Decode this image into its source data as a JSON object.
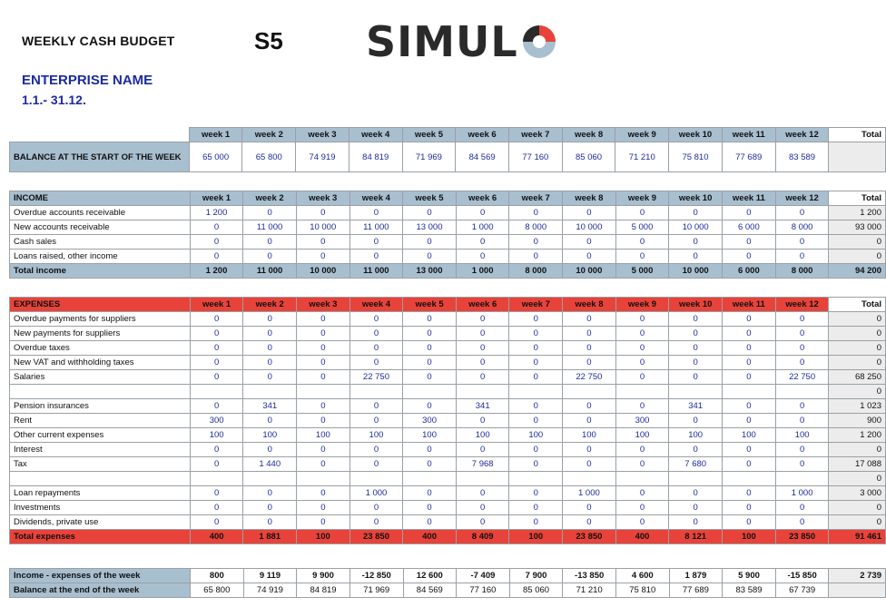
{
  "header": {
    "title": "WEEKLY CASH BUDGET",
    "code": "S5",
    "logo_text": "SIMUL",
    "enterprise": "ENTERPRISE NAME",
    "period": "1.1.- 31.12."
  },
  "columns": [
    "week 1",
    "week 2",
    "week 3",
    "week 4",
    "week 5",
    "week 6",
    "week 7",
    "week 8",
    "week 9",
    "week 10",
    "week 11",
    "week 12",
    "Total"
  ],
  "balance_start": {
    "label": "BALANCE AT THE START OF THE WEEK",
    "values": [
      "65 000",
      "65 800",
      "74 919",
      "84 819",
      "71 969",
      "84 569",
      "77 160",
      "85 060",
      "71 210",
      "75 810",
      "77 689",
      "83 589",
      ""
    ]
  },
  "income": {
    "title": "INCOME",
    "rows": [
      {
        "label": "Overdue accounts receivable",
        "values": [
          "1 200",
          "0",
          "0",
          "0",
          "0",
          "0",
          "0",
          "0",
          "0",
          "0",
          "0",
          "0",
          "1 200"
        ]
      },
      {
        "label": "New accounts receivable",
        "values": [
          "0",
          "11 000",
          "10 000",
          "11 000",
          "13 000",
          "1 000",
          "8 000",
          "10 000",
          "5 000",
          "10 000",
          "6 000",
          "8 000",
          "93 000"
        ]
      },
      {
        "label": "Cash sales",
        "values": [
          "0",
          "0",
          "0",
          "0",
          "0",
          "0",
          "0",
          "0",
          "0",
          "0",
          "0",
          "0",
          "0"
        ]
      },
      {
        "label": "Loans raised, other income",
        "values": [
          "0",
          "0",
          "0",
          "0",
          "0",
          "0",
          "0",
          "0",
          "0",
          "0",
          "0",
          "0",
          "0"
        ]
      }
    ],
    "total": {
      "label": "Total income",
      "values": [
        "1 200",
        "11 000",
        "10 000",
        "11 000",
        "13 000",
        "1 000",
        "8 000",
        "10 000",
        "5 000",
        "10 000",
        "6 000",
        "8 000",
        "94 200"
      ]
    }
  },
  "expenses": {
    "title": "EXPENSES",
    "rows": [
      {
        "label": "Overdue payments for suppliers",
        "values": [
          "0",
          "0",
          "0",
          "0",
          "0",
          "0",
          "0",
          "0",
          "0",
          "0",
          "0",
          "0",
          "0"
        ]
      },
      {
        "label": "New payments for suppliers",
        "values": [
          "0",
          "0",
          "0",
          "0",
          "0",
          "0",
          "0",
          "0",
          "0",
          "0",
          "0",
          "0",
          "0"
        ]
      },
      {
        "label": "Overdue taxes",
        "values": [
          "0",
          "0",
          "0",
          "0",
          "0",
          "0",
          "0",
          "0",
          "0",
          "0",
          "0",
          "0",
          "0"
        ]
      },
      {
        "label": "New VAT and withholding taxes",
        "values": [
          "0",
          "0",
          "0",
          "0",
          "0",
          "0",
          "0",
          "0",
          "0",
          "0",
          "0",
          "0",
          "0"
        ]
      },
      {
        "label": "Salaries",
        "values": [
          "0",
          "0",
          "0",
          "22 750",
          "0",
          "0",
          "0",
          "22 750",
          "0",
          "0",
          "0",
          "22 750",
          "68 250"
        ]
      },
      {
        "label": "",
        "values": [
          "",
          "",
          "",
          "",
          "",
          "",
          "",
          "",
          "",
          "",
          "",
          "",
          "0"
        ]
      },
      {
        "label": "Pension insurances",
        "values": [
          "0",
          "341",
          "0",
          "0",
          "0",
          "341",
          "0",
          "0",
          "0",
          "341",
          "0",
          "0",
          "1 023"
        ]
      },
      {
        "label": "Rent",
        "values": [
          "300",
          "0",
          "0",
          "0",
          "300",
          "0",
          "0",
          "0",
          "300",
          "0",
          "0",
          "0",
          "900"
        ]
      },
      {
        "label": "Other current expenses",
        "values": [
          "100",
          "100",
          "100",
          "100",
          "100",
          "100",
          "100",
          "100",
          "100",
          "100",
          "100",
          "100",
          "1 200"
        ]
      },
      {
        "label": "Interest",
        "values": [
          "0",
          "0",
          "0",
          "0",
          "0",
          "0",
          "0",
          "0",
          "0",
          "0",
          "0",
          "0",
          "0"
        ]
      },
      {
        "label": "Tax",
        "values": [
          "0",
          "1 440",
          "0",
          "0",
          "0",
          "7 968",
          "0",
          "0",
          "0",
          "7 680",
          "0",
          "0",
          "17 088"
        ]
      },
      {
        "label": "",
        "values": [
          "",
          "",
          "",
          "",
          "",
          "",
          "",
          "",
          "",
          "",
          "",
          "",
          "0"
        ]
      },
      {
        "label": "Loan repayments",
        "values": [
          "0",
          "0",
          "0",
          "1 000",
          "0",
          "0",
          "0",
          "1 000",
          "0",
          "0",
          "0",
          "1 000",
          "3 000"
        ]
      },
      {
        "label": "Investments",
        "values": [
          "0",
          "0",
          "0",
          "0",
          "0",
          "0",
          "0",
          "0",
          "0",
          "0",
          "0",
          "0",
          "0"
        ]
      },
      {
        "label": "Dividends, private use",
        "values": [
          "0",
          "0",
          "0",
          "0",
          "0",
          "0",
          "0",
          "0",
          "0",
          "0",
          "0",
          "0",
          "0"
        ]
      }
    ],
    "total": {
      "label": "Total expenses",
      "values": [
        "400",
        "1 881",
        "100",
        "23 850",
        "400",
        "8 409",
        "100",
        "23 850",
        "400",
        "8 121",
        "100",
        "23 850",
        "91 461"
      ]
    }
  },
  "summary": [
    {
      "label": "Income - expenses of the week",
      "values": [
        "800",
        "9 119",
        "9 900",
        "-12 850",
        "12 600",
        "-7 409",
        "7 900",
        "-13 850",
        "4 600",
        "1 879",
        "5 900",
        "-15 850",
        "2 739"
      ]
    },
    {
      "label": "Balance at the end of the week",
      "values": [
        "65 800",
        "74 919",
        "84 819",
        "71 969",
        "84 569",
        "77 160",
        "85 060",
        "71 210",
        "75 810",
        "77 689",
        "83 589",
        "67 739",
        ""
      ]
    }
  ],
  "colors": {
    "blue_header": "#a8bfcf",
    "red_header": "#e8433a",
    "value_text": "#1c2aa0",
    "total_col": "#ececec"
  }
}
